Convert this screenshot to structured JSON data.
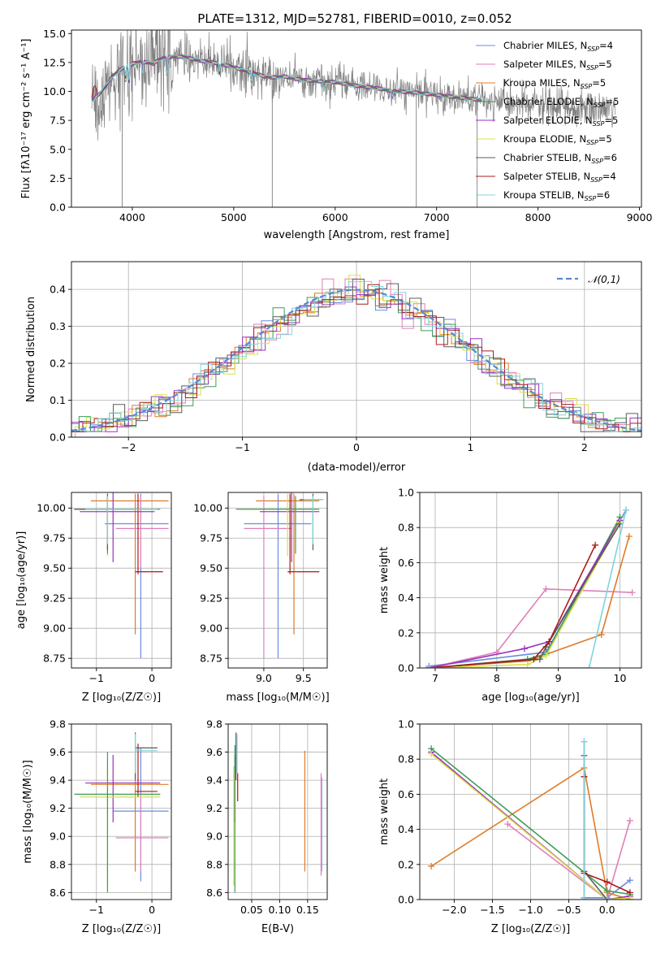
{
  "title": "PLATE=1312, MJD=52781, FIBERID=0010, z=0.052",
  "models": [
    {
      "name": "Chabrier MILES",
      "nssp": "4",
      "color": "#6b8bdd"
    },
    {
      "name": "Salpeter MILES",
      "nssp": "5",
      "color": "#e07fb8"
    },
    {
      "name": "Kroupa MILES",
      "nssp": "5",
      "color": "#e07b28"
    },
    {
      "name": "Chabrier ELODIE",
      "nssp": "5",
      "color": "#3e9e56"
    },
    {
      "name": "Salpeter ELODIE",
      "nssp": "5",
      "color": "#9b2fc0"
    },
    {
      "name": "Kroupa ELODIE",
      "nssp": "5",
      "color": "#d9e04a"
    },
    {
      "name": "Chabrier STELIB",
      "nssp": "6",
      "color": "#5c5c5c"
    },
    {
      "name": "Salpeter STELIB",
      "nssp": "4",
      "color": "#a81c1c"
    },
    {
      "name": "Kroupa STELIB",
      "nssp": "6",
      "color": "#7fd4dc"
    }
  ],
  "chart_data": [
    {
      "id": "spectrum",
      "type": "line",
      "xlabel": "wavelength [Angstrom, rest frame]",
      "ylabel": "Flux [fλ10⁻¹⁷ erg cm⁻² s⁻¹ A⁻¹]",
      "xlim": [
        3400,
        9020
      ],
      "ylim": [
        0,
        15.3
      ],
      "xticks": [
        4000,
        5000,
        6000,
        7000,
        8000,
        9000
      ],
      "yticks": [
        0.0,
        2.5,
        5.0,
        7.5,
        10.0,
        12.5,
        15.0
      ],
      "continuum": [
        [
          3600,
          9.2
        ],
        [
          3650,
          9.6
        ],
        [
          3700,
          10.0
        ],
        [
          3800,
          11.3
        ],
        [
          3900,
          12.0
        ],
        [
          4000,
          12.4
        ],
        [
          4100,
          12.6
        ],
        [
          4200,
          12.4
        ],
        [
          4300,
          12.9
        ],
        [
          4400,
          13.0
        ],
        [
          4500,
          13.0
        ],
        [
          4600,
          12.8
        ],
        [
          4700,
          12.6
        ],
        [
          4800,
          12.5
        ],
        [
          4900,
          12.3
        ],
        [
          5000,
          12.1
        ],
        [
          5100,
          11.8
        ],
        [
          5200,
          11.6
        ],
        [
          5300,
          11.3
        ],
        [
          5400,
          11.2
        ],
        [
          5500,
          11.3
        ],
        [
          5600,
          11.1
        ],
        [
          5800,
          10.9
        ],
        [
          6000,
          10.8
        ],
        [
          6200,
          10.5
        ],
        [
          6400,
          10.3
        ],
        [
          6600,
          10.0
        ],
        [
          6800,
          9.9
        ],
        [
          7000,
          9.7
        ],
        [
          7200,
          9.5
        ],
        [
          7400,
          9.3
        ],
        [
          7600,
          9.0
        ],
        [
          7800,
          8.9
        ],
        [
          8000,
          8.8
        ],
        [
          8200,
          8.6
        ],
        [
          8400,
          8.5
        ],
        [
          8600,
          8.5
        ],
        [
          8750,
          8.6
        ]
      ],
      "absorption": [
        [
          3933,
          1.0
        ],
        [
          3968,
          1.5
        ],
        [
          4102,
          1.0
        ],
        [
          4340,
          1.5
        ],
        [
          4861,
          0.8
        ],
        [
          5175,
          0.8
        ],
        [
          5890,
          0.6
        ],
        [
          6563,
          0.5
        ],
        [
          7600,
          0.6
        ]
      ],
      "dips": [
        [
          3900,
          0.0
        ],
        [
          5380,
          0.0
        ],
        [
          6800,
          0.0
        ],
        [
          7400,
          0.0
        ]
      ],
      "data_x_range": [
        3600,
        8760
      ],
      "model_x_range": [
        3600,
        7450
      ]
    },
    {
      "id": "residuals",
      "type": "line",
      "xlabel": "(data-model)/error",
      "ylabel": "Normed distribution",
      "xlim": [
        -2.5,
        2.5
      ],
      "ylim": [
        0,
        0.475
      ],
      "xticks": [
        -2,
        -1,
        0,
        1,
        2
      ],
      "yticks": [
        0.0,
        0.1,
        0.2,
        0.3,
        0.4
      ],
      "legend": "𝒩(0,1)",
      "gaussian": {
        "mu": 0,
        "sigma": 1
      }
    },
    {
      "id": "age_vs_Z",
      "type": "errorbar",
      "xlabel": "Z [log₁₀(Z/Z☉)]",
      "ylabel": "age  [log₁₀(age/yr)]",
      "xlim": [
        -1.45,
        0.35
      ],
      "ylim": [
        8.67,
        10.13
      ],
      "xticks": [
        -1,
        0
      ],
      "yticks": [
        8.75,
        9.0,
        9.25,
        9.5,
        9.75,
        10.0
      ],
      "points": [
        {
          "m": 2,
          "x": -0.3,
          "y": 10.06,
          "x0": -1.1,
          "x1": 0.3,
          "y0": 8.95,
          "y1": 10.12
        },
        {
          "m": 0,
          "x": -0.2,
          "y": 9.87,
          "x0": -0.85,
          "x1": 0.3,
          "y0": 8.75,
          "y1": 10.12
        },
        {
          "m": 1,
          "x": -0.2,
          "y": 9.83,
          "x0": -0.65,
          "x1": 0.3,
          "y0": 9.5,
          "y1": 10.1
        },
        {
          "m": 7,
          "x": -0.25,
          "y": 9.47,
          "x0": -0.3,
          "x1": 0.2,
          "y0": 9.45,
          "y1": 10.12
        },
        {
          "m": 4,
          "x": -0.7,
          "y": 9.97,
          "x0": -1.3,
          "x1": 0.05,
          "y0": 9.55,
          "y1": 10.13
        },
        {
          "m": 5,
          "x": -0.8,
          "y": 9.99,
          "x0": -1.35,
          "x1": 0.1,
          "y0": 9.6,
          "y1": 10.12
        },
        {
          "m": 3,
          "x": -0.8,
          "y": 9.99,
          "x0": -1.4,
          "x1": 0.15,
          "y0": 9.62,
          "y1": 10.1
        },
        {
          "m": 6,
          "x": -0.8,
          "y": 9.99,
          "x0": -1.4,
          "x1": -0.3,
          "y0": 9.65,
          "y1": 10.12
        },
        {
          "m": 8,
          "x": -0.8,
          "y": 9.99,
          "x0": -1.2,
          "x1": 0.1,
          "y0": 9.7,
          "y1": 10.1
        }
      ]
    },
    {
      "id": "age_vs_mass",
      "type": "errorbar",
      "xlabel": "mass [log₁₀(M/M☉)]",
      "ylabel": "",
      "xlim": [
        8.55,
        9.8
      ],
      "ylim": [
        8.67,
        10.13
      ],
      "xticks": [
        9.0,
        9.5
      ],
      "yticks": [
        8.75,
        9.0,
        9.25,
        9.5,
        9.75,
        10.0
      ],
      "points": [
        {
          "m": 2,
          "x": 9.38,
          "y": 10.06,
          "x0": 8.9,
          "x1": 9.7,
          "y0": 8.95,
          "y1": 10.12
        },
        {
          "m": 0,
          "x": 9.18,
          "y": 9.87,
          "x0": 8.75,
          "x1": 9.6,
          "y0": 8.75,
          "y1": 10.12
        },
        {
          "m": 1,
          "x": 9.0,
          "y": 9.83,
          "x0": 8.75,
          "x1": 9.35,
          "y0": 8.75,
          "y1": 10.1
        },
        {
          "m": 7,
          "x": 9.33,
          "y": 9.47,
          "x0": 9.3,
          "x1": 9.7,
          "y0": 9.45,
          "y1": 10.12
        },
        {
          "m": 4,
          "x": 9.35,
          "y": 9.97,
          "x0": 8.95,
          "x1": 9.7,
          "y0": 9.55,
          "y1": 10.13
        },
        {
          "m": 5,
          "x": 9.3,
          "y": 9.99,
          "x0": 8.65,
          "x1": 9.68,
          "y0": 9.6,
          "y1": 10.12
        },
        {
          "m": 3,
          "x": 9.4,
          "y": 9.99,
          "x0": 8.65,
          "x1": 9.7,
          "y0": 9.62,
          "y1": 10.1
        },
        {
          "m": 6,
          "x": 9.62,
          "y": 10.07,
          "x0": 9.45,
          "x1": 9.75,
          "y0": 9.65,
          "y1": 10.12
        },
        {
          "m": 8,
          "x": 9.62,
          "y": 10.07,
          "x0": 9.5,
          "x1": 9.75,
          "y0": 9.7,
          "y1": 10.1
        }
      ]
    },
    {
      "id": "mw_vs_age",
      "type": "line",
      "xlabel": "age  [log₁₀(age/yr)]",
      "ylabel": "mass weight",
      "xlim": [
        6.75,
        10.35
      ],
      "ylim": [
        0,
        1.0
      ],
      "xticks": [
        7,
        8,
        9,
        10
      ],
      "yticks": [
        0.0,
        0.2,
        0.4,
        0.6,
        0.8,
        1.0
      ],
      "series": [
        {
          "m": 0,
          "points": [
            [
              6.9,
              0.01
            ],
            [
              8.8,
              0.09
            ],
            [
              10.1,
              0.9
            ]
          ]
        },
        {
          "m": 1,
          "points": [
            [
              6.9,
              0.0
            ],
            [
              8.0,
              0.09
            ],
            [
              8.8,
              0.45
            ],
            [
              10.2,
              0.43
            ]
          ]
        },
        {
          "m": 2,
          "points": [
            [
              6.9,
              0.0
            ],
            [
              8.5,
              0.04
            ],
            [
              9.7,
              0.19
            ],
            [
              10.15,
              0.75
            ]
          ]
        },
        {
          "m": 3,
          "points": [
            [
              6.9,
              0.0
            ],
            [
              8.5,
              0.05
            ],
            [
              8.8,
              0.08
            ],
            [
              10.0,
              0.86
            ]
          ]
        },
        {
          "m": 4,
          "points": [
            [
              6.9,
              0.0
            ],
            [
              8.45,
              0.11
            ],
            [
              8.85,
              0.15
            ],
            [
              10.0,
              0.84
            ]
          ]
        },
        {
          "m": 5,
          "points": [
            [
              6.9,
              0.0
            ],
            [
              8.5,
              0.02
            ],
            [
              8.8,
              0.07
            ],
            [
              10.0,
              0.83
            ]
          ]
        },
        {
          "m": 6,
          "points": [
            [
              6.9,
              0.0
            ],
            [
              8.7,
              0.05
            ],
            [
              8.8,
              0.12
            ],
            [
              10.0,
              0.82
            ]
          ]
        },
        {
          "m": 7,
          "points": [
            [
              6.9,
              0.0
            ],
            [
              8.6,
              0.05
            ],
            [
              8.85,
              0.15
            ],
            [
              9.6,
              0.7
            ]
          ]
        },
        {
          "m": 8,
          "points": [
            [
              6.9,
              0.0
            ],
            [
              8.0,
              0.0
            ],
            [
              9.5,
              0.0
            ],
            [
              10.1,
              0.9
            ]
          ]
        }
      ]
    },
    {
      "id": "mass_vs_Z",
      "type": "errorbar",
      "xlabel": "Z [log₁₀(Z/Z☉)]",
      "ylabel": "mass [log₁₀(M/M☉)]",
      "xlim": [
        -1.45,
        0.35
      ],
      "ylim": [
        8.55,
        9.8
      ],
      "xticks": [
        -1,
        0
      ],
      "yticks": [
        8.6,
        8.8,
        9.0,
        9.2,
        9.4,
        9.6,
        9.8
      ],
      "points": [
        {
          "m": 2,
          "x": -0.3,
          "y": 9.37,
          "x0": -1.1,
          "x1": 0.3,
          "y0": 8.75,
          "y1": 9.65
        },
        {
          "m": 0,
          "x": -0.2,
          "y": 9.18,
          "x0": -0.7,
          "x1": 0.3,
          "y0": 8.68,
          "y1": 9.63
        },
        {
          "m": 1,
          "x": -0.2,
          "y": 8.99,
          "x0": -0.65,
          "x1": 0.3,
          "y0": 8.75,
          "y1": 9.3
        },
        {
          "m": 7,
          "x": -0.25,
          "y": 9.32,
          "x0": -0.3,
          "x1": 0.1,
          "y0": 9.28,
          "y1": 9.66
        },
        {
          "m": 4,
          "x": -0.7,
          "y": 9.38,
          "x0": -1.2,
          "x1": 0.15,
          "y0": 9.1,
          "y1": 9.58
        },
        {
          "m": 5,
          "x": -0.8,
          "y": 9.28,
          "x0": -1.3,
          "x1": 0.15,
          "y0": 8.65,
          "y1": 9.5
        },
        {
          "m": 3,
          "x": -0.8,
          "y": 9.3,
          "x0": -1.4,
          "x1": 0.15,
          "y0": 8.6,
          "y1": 9.6
        },
        {
          "m": 6,
          "x": -0.3,
          "y": 9.63,
          "x0": -0.3,
          "x1": 0.1,
          "y0": 9.4,
          "y1": 9.74
        },
        {
          "m": 8,
          "x": -0.3,
          "y": 9.61,
          "x0": -0.3,
          "x1": 0.1,
          "y0": 9.45,
          "y1": 9.73
        }
      ]
    },
    {
      "id": "mass_vs_ebv",
      "type": "errorbar",
      "xlabel": "E(B-V)",
      "ylabel": "",
      "xlim": [
        0.008,
        0.185
      ],
      "ylim": [
        8.55,
        9.8
      ],
      "xticks": [
        0.05,
        0.1,
        0.15
      ],
      "yticks": [
        8.6,
        8.8,
        9.0,
        9.2,
        9.4,
        9.6,
        9.8
      ],
      "points": [
        {
          "m": 2,
          "x": 0.145,
          "y": 9.37,
          "y0": 8.75,
          "y1": 9.61
        },
        {
          "m": 0,
          "x": 0.175,
          "y": 9.18,
          "y0": 8.75,
          "y1": 9.42
        },
        {
          "m": 1,
          "x": 0.174,
          "y": 8.99,
          "y0": 8.72,
          "y1": 9.45
        },
        {
          "m": 7,
          "x": 0.025,
          "y": 9.32,
          "y0": 9.25,
          "y1": 9.45
        },
        {
          "m": 4,
          "x": 0.02,
          "y": 9.38,
          "y0": 9.1,
          "y1": 9.58
        },
        {
          "m": 5,
          "x": 0.018,
          "y": 9.28,
          "y0": 8.65,
          "y1": 9.5
        },
        {
          "m": 3,
          "x": 0.02,
          "y": 9.3,
          "y0": 8.6,
          "y1": 9.65
        },
        {
          "m": 6,
          "x": 0.022,
          "y": 9.63,
          "y0": 9.4,
          "y1": 9.74
        },
        {
          "m": 8,
          "x": 0.024,
          "y": 9.61,
          "y0": 9.45,
          "y1": 9.73
        }
      ]
    },
    {
      "id": "mw_vs_Z",
      "type": "line",
      "xlabel": "Z [log₁₀(Z/Z☉)]",
      "ylabel": "mass weight",
      "xlim": [
        -2.45,
        0.45
      ],
      "ylim": [
        0,
        1.0
      ],
      "xticks": [
        -2.0,
        -1.5,
        -1.0,
        -0.5,
        0.0
      ],
      "yticks": [
        0.0,
        0.2,
        0.4,
        0.6,
        0.8,
        1.0
      ],
      "series": [
        {
          "m": 0,
          "points": [
            [
              -0.3,
              0.9
            ],
            [
              -0.3,
              0.01
            ],
            [
              0.0,
              0.01
            ],
            [
              0.3,
              0.11
            ]
          ]
        },
        {
          "m": 1,
          "points": [
            [
              -1.3,
              0.43
            ],
            [
              0.0,
              0.0
            ],
            [
              0.3,
              0.45
            ]
          ]
        },
        {
          "m": 2,
          "points": [
            [
              -2.3,
              0.19
            ],
            [
              -0.3,
              0.75
            ],
            [
              0.0,
              0.04
            ],
            [
              0.3,
              0.0
            ]
          ]
        },
        {
          "m": 3,
          "points": [
            [
              -2.3,
              0.86
            ],
            [
              0.0,
              0.05
            ],
            [
              0.3,
              0.03
            ]
          ]
        },
        {
          "m": 4,
          "points": [
            [
              -2.3,
              0.84
            ],
            [
              0.0,
              0.0
            ],
            [
              0.3,
              0.02
            ]
          ]
        },
        {
          "m": 5,
          "points": [
            [
              -2.3,
              0.83
            ],
            [
              0.0,
              0.0
            ],
            [
              0.3,
              0.01
            ]
          ]
        },
        {
          "m": 6,
          "points": [
            [
              -0.3,
              0.82
            ],
            [
              -0.3,
              0.16
            ],
            [
              0.0,
              0.0
            ]
          ]
        },
        {
          "m": 7,
          "points": [
            [
              -0.3,
              0.7
            ],
            [
              -0.3,
              0.15
            ],
            [
              0.0,
              0.1
            ],
            [
              0.3,
              0.04
            ]
          ]
        },
        {
          "m": 8,
          "points": [
            [
              -0.3,
              0.9
            ],
            [
              -0.3,
              0.0
            ],
            [
              0.0,
              0.0
            ]
          ]
        }
      ]
    }
  ]
}
